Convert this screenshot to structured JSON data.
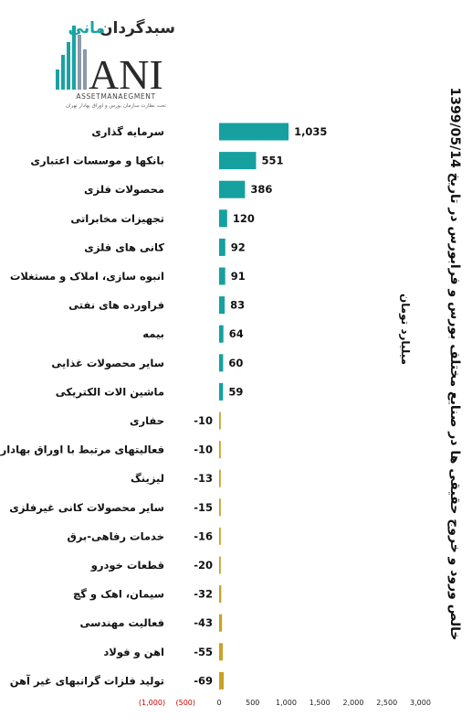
{
  "logo": {
    "brand_fa_part1": "سبدگردان",
    "brand_fa_part2": "مانی",
    "big_text": "ANI",
    "subtitle": "ASSETMANAEGMENT",
    "tagline": "تحت نظارت سازمان بورس و اوراق بهادار تهران"
  },
  "colors": {
    "positive": "#16a0a0",
    "negative": "#c9a227",
    "tick_negative": "#cc0000"
  },
  "chart_data": {
    "type": "bar",
    "orientation": "horizontal",
    "title": "خالص ورود و خروج حقیقی ها در صنایع مختلف بورس و فرابورس در تاریخ 1399/05/14",
    "unit": "میلیارد تومان",
    "categories": [
      "سرمایه گذاری",
      "بانکها و موسسات اعتباری",
      "محصولات فلزی",
      "تجهیزات مخابراتی",
      "کانی های فلزی",
      "انبوه سازی، املاک و مستغلات",
      "فراورده های نفتی",
      "بیمه",
      "سایر محصولات غذایی",
      "ماشین الات الکتریکی",
      "حفاری",
      "فعالیتهای مرتبط با اوراق بهادار",
      "لیزینگ",
      "سایر محصولات کانی غیرفلزی",
      "خدمات رفاهی-برق",
      "قطعات خودرو",
      "سیمان، اهک و گچ",
      "فعالیت مهندسی",
      "اهن و فولاد",
      "تولید فلزات گرانبهای غیر آهن"
    ],
    "values": [
      1035,
      551,
      386,
      120,
      92,
      91,
      83,
      64,
      60,
      59,
      -10,
      -10,
      -13,
      -15,
      -16,
      -20,
      -32,
      -43,
      -55,
      -69
    ],
    "value_labels": [
      "1,035",
      "551",
      "386",
      "120",
      "92",
      "91",
      "83",
      "64",
      "60",
      "59",
      "-10",
      "-10",
      "-13",
      "-15",
      "-16",
      "-20",
      "-32",
      "-43",
      "-55",
      "-69"
    ],
    "xlim": [
      -1000,
      3000
    ],
    "ticks": [
      -1000,
      -500,
      0,
      500,
      1000,
      1500,
      2000,
      2500,
      3000
    ],
    "tick_labels": [
      "(1,000)",
      "(500)",
      "0",
      "500",
      "1,000",
      "1,500",
      "2,000",
      "2,500",
      "3,000"
    ],
    "grid": false,
    "legend": "none"
  }
}
